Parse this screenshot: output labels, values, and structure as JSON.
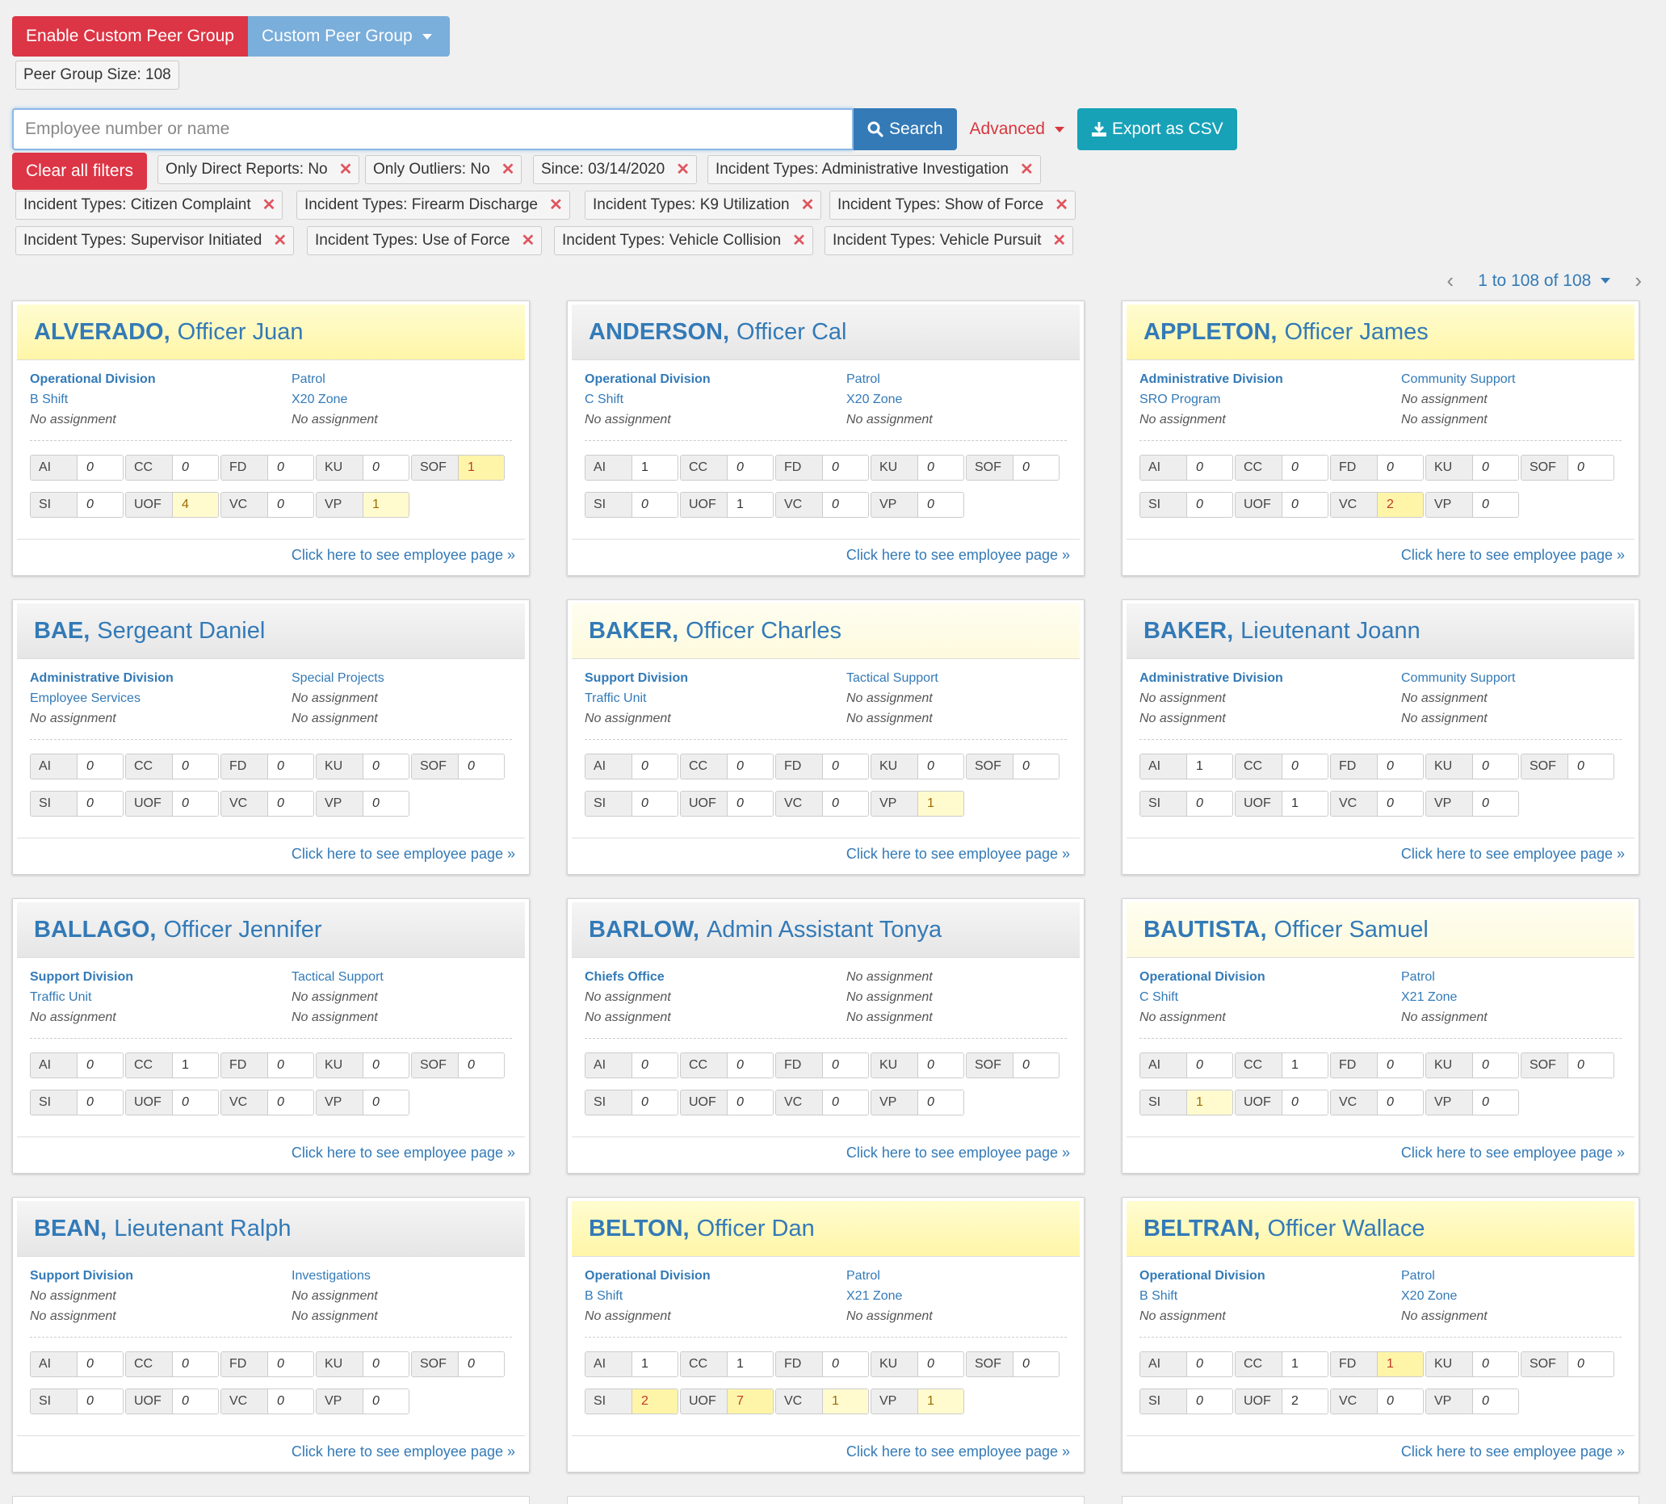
{
  "toolbar": {
    "enable_peer_group": "Enable Custom Peer Group",
    "custom_peer_group": "Custom Peer Group",
    "peer_group_size": "Peer Group Size: 108"
  },
  "search": {
    "placeholder": "Employee number or name",
    "value": "",
    "search_label": "Search",
    "advanced_label": "Advanced",
    "export_label": "Export as CSV"
  },
  "filters": {
    "clear_label": "Clear all filters",
    "chips": [
      "Only Direct Reports: No",
      "Only Outliers: No",
      "Since: 03/14/2020",
      "Incident Types: Administrative Investigation",
      "Incident Types: Citizen Complaint",
      "Incident Types: Firearm Discharge",
      "Incident Types: K9 Utilization",
      "Incident Types: Show of Force",
      "Incident Types: Supervisor Initiated",
      "Incident Types: Use of Force",
      "Incident Types: Vehicle Collision",
      "Incident Types: Vehicle Pursuit"
    ]
  },
  "pager": {
    "range": "1 to 108 of 108"
  },
  "footer_link": "Click here to see employee page »",
  "stat_labels": [
    "AI",
    "CC",
    "FD",
    "KU",
    "SOF",
    "SI",
    "UOF",
    "VC",
    "VP"
  ],
  "cards": [
    {
      "last": "ALVERADO,",
      "first": "Officer Juan",
      "header": "yellow",
      "col1": [
        "Operational Division",
        "B Shift",
        "No assignment"
      ],
      "col2": [
        "Patrol",
        "X20 Zone",
        "No assignment"
      ],
      "stats": [
        "0",
        "0",
        "0",
        "0",
        "1",
        "0",
        "4",
        "0",
        "1"
      ]
    },
    {
      "last": "ANDERSON,",
      "first": "Officer Cal",
      "header": "grey",
      "col1": [
        "Operational Division",
        "C Shift",
        "No assignment"
      ],
      "col2": [
        "Patrol",
        "X20 Zone",
        "No assignment"
      ],
      "stats": [
        "1",
        "0",
        "0",
        "0",
        "0",
        "0",
        "1",
        "0",
        "0"
      ]
    },
    {
      "last": "APPLETON,",
      "first": "Officer James",
      "header": "yellow",
      "col1": [
        "Administrative Division",
        "SRO Program",
        "No assignment"
      ],
      "col2": [
        "Community Support",
        "No assignment",
        "No assignment"
      ],
      "stats": [
        "0",
        "0",
        "0",
        "0",
        "0",
        "0",
        "0",
        "2",
        "0"
      ]
    },
    {
      "last": "BAE,",
      "first": "Sergeant Daniel",
      "header": "grey",
      "col1": [
        "Administrative Division",
        "Employee Services",
        "No assignment"
      ],
      "col2": [
        "Special Projects",
        "No assignment",
        "No assignment"
      ],
      "stats": [
        "0",
        "0",
        "0",
        "0",
        "0",
        "0",
        "0",
        "0",
        "0"
      ]
    },
    {
      "last": "BAKER,",
      "first": "Officer Charles",
      "header": "lightyellow",
      "col1": [
        "Support Division",
        "Traffic Unit",
        "No assignment"
      ],
      "col2": [
        "Tactical Support",
        "No assignment",
        "No assignment"
      ],
      "stats": [
        "0",
        "0",
        "0",
        "0",
        "0",
        "0",
        "0",
        "0",
        "1"
      ]
    },
    {
      "last": "BAKER,",
      "first": "Lieutenant Joann",
      "header": "grey",
      "col1": [
        "Administrative Division",
        "No assignment",
        "No assignment"
      ],
      "col2": [
        "Community Support",
        "No assignment",
        "No assignment"
      ],
      "stats": [
        "1",
        "0",
        "0",
        "0",
        "0",
        "0",
        "1",
        "0",
        "0"
      ]
    },
    {
      "last": "BALLAGO,",
      "first": "Officer Jennifer",
      "header": "grey",
      "col1": [
        "Support Division",
        "Traffic Unit",
        "No assignment"
      ],
      "col2": [
        "Tactical Support",
        "No assignment",
        "No assignment"
      ],
      "stats": [
        "0",
        "1",
        "0",
        "0",
        "0",
        "0",
        "0",
        "0",
        "0"
      ]
    },
    {
      "last": "BARLOW,",
      "first": "Admin Assistant Tonya",
      "header": "grey",
      "col1": [
        "Chiefs Office",
        "No assignment",
        "No assignment"
      ],
      "col2": [
        "No assignment",
        "No assignment",
        "No assignment"
      ],
      "stats": [
        "0",
        "0",
        "0",
        "0",
        "0",
        "0",
        "0",
        "0",
        "0"
      ]
    },
    {
      "last": "BAUTISTA,",
      "first": "Officer Samuel",
      "header": "lightyellow",
      "col1": [
        "Operational Division",
        "C Shift",
        "No assignment"
      ],
      "col2": [
        "Patrol",
        "X21 Zone",
        "No assignment"
      ],
      "stats": [
        "0",
        "1",
        "0",
        "0",
        "0",
        "1",
        "0",
        "0",
        "0"
      ]
    },
    {
      "last": "BEAN,",
      "first": "Lieutenant Ralph",
      "header": "grey",
      "col1": [
        "Support Division",
        "No assignment",
        "No assignment"
      ],
      "col2": [
        "Investigations",
        "No assignment",
        "No assignment"
      ],
      "stats": [
        "0",
        "0",
        "0",
        "0",
        "0",
        "0",
        "0",
        "0",
        "0"
      ]
    },
    {
      "last": "BELTON,",
      "first": "Officer Dan",
      "header": "yellow",
      "col1": [
        "Operational Division",
        "B Shift",
        "No assignment"
      ],
      "col2": [
        "Patrol",
        "X21 Zone",
        "No assignment"
      ],
      "stats": [
        "1",
        "1",
        "0",
        "0",
        "0",
        "2",
        "7",
        "1",
        "1"
      ]
    },
    {
      "last": "BELTRAN,",
      "first": "Officer Wallace",
      "header": "yellow",
      "col1": [
        "Operational Division",
        "B Shift",
        "No assignment"
      ],
      "col2": [
        "Patrol",
        "X20 Zone",
        "No assignment"
      ],
      "stats": [
        "0",
        "1",
        "1",
        "0",
        "0",
        "0",
        "2",
        "0",
        "0"
      ]
    }
  ],
  "highlight_levels": {
    "0": [
      "none",
      "none",
      "none",
      "none",
      "strong",
      "none",
      "mild",
      "none",
      "mild"
    ],
    "1": [
      "none",
      "none",
      "none",
      "none",
      "none",
      "none",
      "none",
      "none",
      "none"
    ],
    "2": [
      "none",
      "none",
      "none",
      "none",
      "none",
      "none",
      "none",
      "strong",
      "none"
    ],
    "3": [
      "none",
      "none",
      "none",
      "none",
      "none",
      "none",
      "none",
      "none",
      "none"
    ],
    "4": [
      "none",
      "none",
      "none",
      "none",
      "none",
      "none",
      "none",
      "none",
      "mild"
    ],
    "5": [
      "none",
      "none",
      "none",
      "none",
      "none",
      "none",
      "none",
      "none",
      "none"
    ],
    "6": [
      "none",
      "none",
      "none",
      "none",
      "none",
      "none",
      "none",
      "none",
      "none"
    ],
    "7": [
      "none",
      "none",
      "none",
      "none",
      "none",
      "none",
      "none",
      "none",
      "none"
    ],
    "8": [
      "none",
      "none",
      "none",
      "none",
      "none",
      "mild",
      "none",
      "none",
      "none"
    ],
    "9": [
      "none",
      "none",
      "none",
      "none",
      "none",
      "none",
      "none",
      "none",
      "none"
    ],
    "10": [
      "none",
      "none",
      "none",
      "none",
      "none",
      "strong",
      "strong",
      "mild",
      "mild"
    ],
    "11": [
      "none",
      "none",
      "strong",
      "none",
      "none",
      "none",
      "none",
      "none",
      "none"
    ]
  },
  "colors": {
    "danger": "#dc3545",
    "primary": "#337ab7",
    "info": "#17a2b8",
    "highlight_mild": "#fffbcf",
    "highlight_strong": "#fff5a8"
  }
}
